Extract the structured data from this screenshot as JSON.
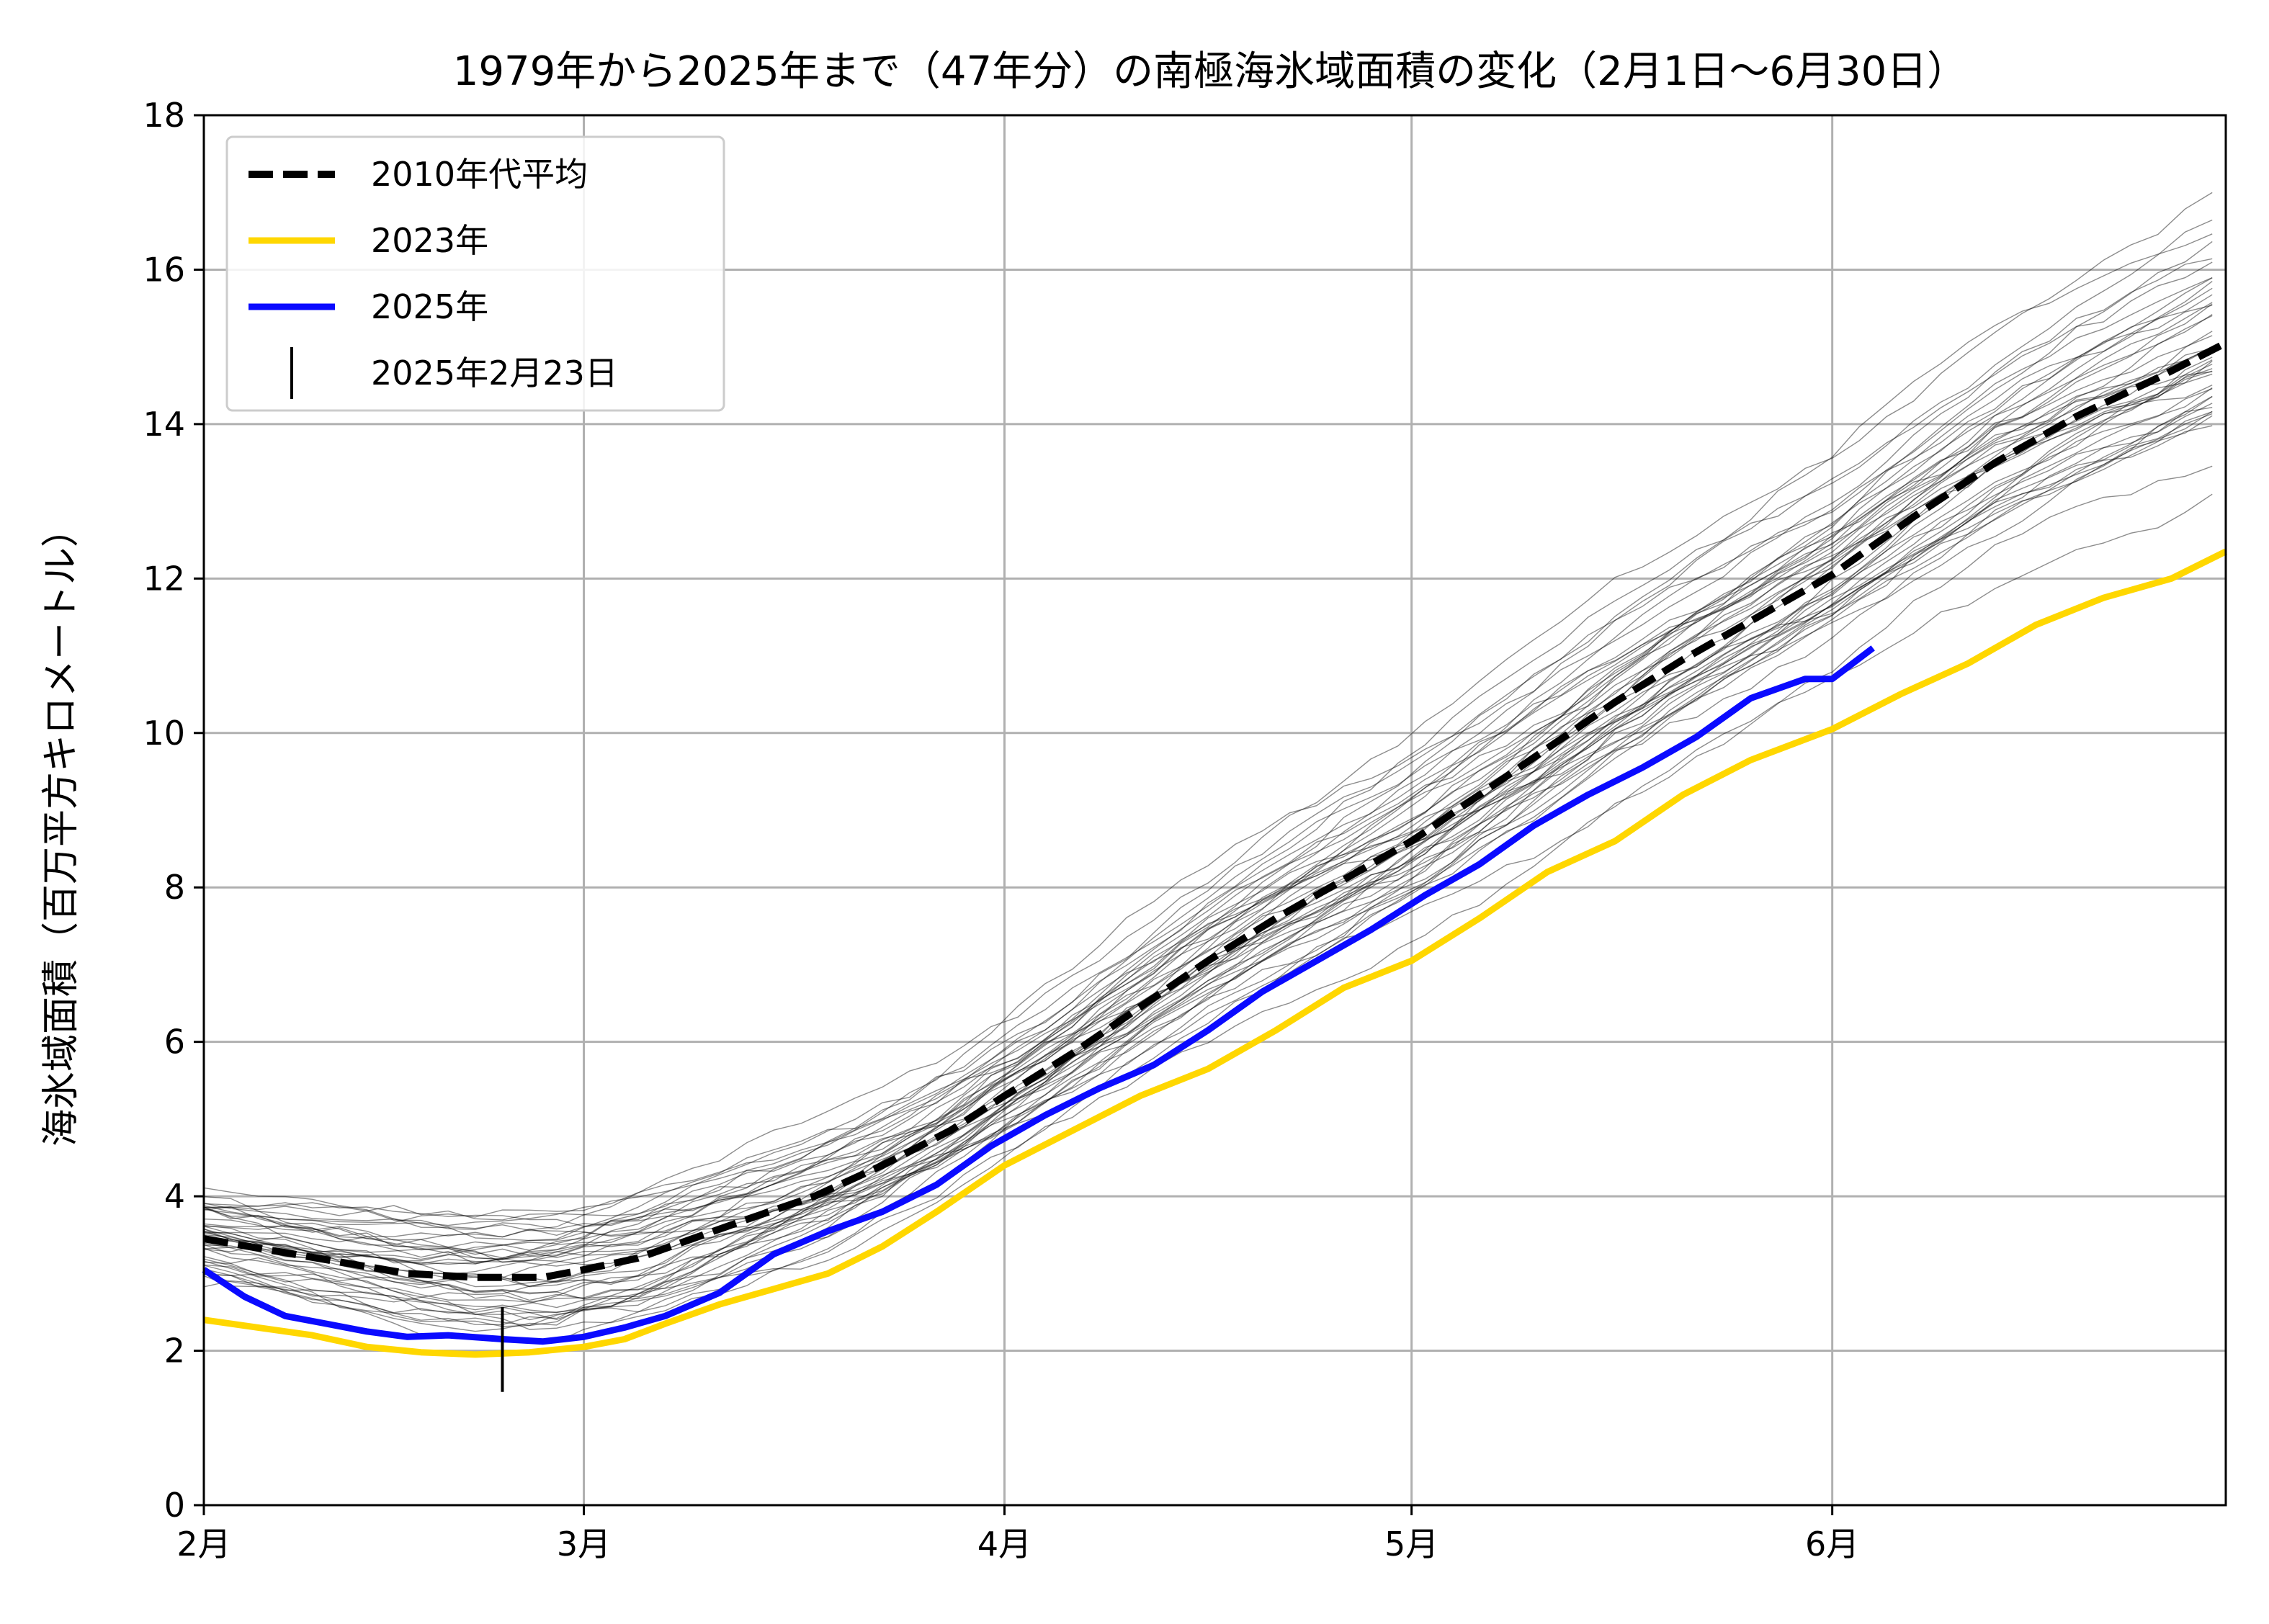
{
  "chart_data": {
    "type": "line",
    "title": "1979年から2025年まで（47年分）の南極海氷域面積の変化（2月1日〜6月30日）",
    "xlabel": "",
    "ylabel": "海氷域面積（百万平方キロメートル）",
    "x_unit": "day of year (Feb 1 = 0)",
    "xlim": [
      0,
      149
    ],
    "ylim": [
      0,
      18
    ],
    "x_ticks": [
      {
        "value": 0,
        "label": "2月"
      },
      {
        "value": 28,
        "label": "3月"
      },
      {
        "value": 59,
        "label": "4月"
      },
      {
        "value": 89,
        "label": "5月"
      },
      {
        "value": 120,
        "label": "6月"
      }
    ],
    "y_ticks": [
      0,
      2,
      4,
      6,
      8,
      10,
      12,
      14,
      16,
      18
    ],
    "grid": true,
    "legend_position": "top-left",
    "series": [
      {
        "name": "2010年代平均",
        "color": "#000000",
        "style": "dashed",
        "points": [
          [
            0,
            3.45
          ],
          [
            5,
            3.3
          ],
          [
            10,
            3.15
          ],
          [
            15,
            3.0
          ],
          [
            20,
            2.95
          ],
          [
            25,
            2.95
          ],
          [
            28,
            3.05
          ],
          [
            32,
            3.2
          ],
          [
            36,
            3.45
          ],
          [
            40,
            3.7
          ],
          [
            45,
            4.0
          ],
          [
            50,
            4.4
          ],
          [
            55,
            4.85
          ],
          [
            59,
            5.3
          ],
          [
            64,
            5.85
          ],
          [
            69,
            6.45
          ],
          [
            74,
            7.05
          ],
          [
            79,
            7.6
          ],
          [
            84,
            8.1
          ],
          [
            89,
            8.6
          ],
          [
            94,
            9.2
          ],
          [
            99,
            9.8
          ],
          [
            104,
            10.4
          ],
          [
            109,
            10.95
          ],
          [
            114,
            11.45
          ],
          [
            120,
            12.05
          ],
          [
            126,
            12.8
          ],
          [
            132,
            13.5
          ],
          [
            138,
            14.1
          ],
          [
            144,
            14.6
          ],
          [
            149,
            15.05
          ]
        ]
      },
      {
        "name": "2023年",
        "color": "#ffd700",
        "style": "solid",
        "points": [
          [
            0,
            2.4
          ],
          [
            4,
            2.3
          ],
          [
            8,
            2.2
          ],
          [
            12,
            2.05
          ],
          [
            16,
            1.98
          ],
          [
            20,
            1.95
          ],
          [
            24,
            1.98
          ],
          [
            28,
            2.05
          ],
          [
            31,
            2.15
          ],
          [
            34,
            2.35
          ],
          [
            38,
            2.6
          ],
          [
            42,
            2.8
          ],
          [
            46,
            3.0
          ],
          [
            50,
            3.35
          ],
          [
            54,
            3.8
          ],
          [
            59,
            4.4
          ],
          [
            64,
            4.85
          ],
          [
            69,
            5.3
          ],
          [
            74,
            5.65
          ],
          [
            79,
            6.15
          ],
          [
            84,
            6.7
          ],
          [
            89,
            7.05
          ],
          [
            94,
            7.6
          ],
          [
            99,
            8.2
          ],
          [
            104,
            8.6
          ],
          [
            109,
            9.2
          ],
          [
            114,
            9.65
          ],
          [
            120,
            10.05
          ],
          [
            125,
            10.5
          ],
          [
            130,
            10.9
          ],
          [
            135,
            11.4
          ],
          [
            140,
            11.75
          ],
          [
            145,
            12.0
          ],
          [
            149,
            12.35
          ]
        ]
      },
      {
        "name": "2025年",
        "color": "#0a0aff",
        "style": "solid",
        "points": [
          [
            0,
            3.05
          ],
          [
            3,
            2.7
          ],
          [
            6,
            2.45
          ],
          [
            9,
            2.35
          ],
          [
            12,
            2.25
          ],
          [
            15,
            2.18
          ],
          [
            18,
            2.2
          ],
          [
            22,
            2.15
          ],
          [
            25,
            2.12
          ],
          [
            28,
            2.18
          ],
          [
            31,
            2.3
          ],
          [
            34,
            2.45
          ],
          [
            38,
            2.75
          ],
          [
            42,
            3.25
          ],
          [
            46,
            3.55
          ],
          [
            50,
            3.8
          ],
          [
            54,
            4.15
          ],
          [
            58,
            4.65
          ],
          [
            62,
            5.05
          ],
          [
            66,
            5.4
          ],
          [
            70,
            5.7
          ],
          [
            74,
            6.15
          ],
          [
            78,
            6.65
          ],
          [
            82,
            7.05
          ],
          [
            86,
            7.45
          ],
          [
            90,
            7.9
          ],
          [
            94,
            8.3
          ],
          [
            98,
            8.8
          ],
          [
            102,
            9.2
          ],
          [
            106,
            9.55
          ],
          [
            110,
            9.95
          ],
          [
            114,
            10.45
          ],
          [
            118,
            10.7
          ],
          [
            120,
            10.7
          ],
          [
            123,
            11.1
          ]
        ]
      }
    ],
    "background_years": {
      "count": 44,
      "color": "#000000",
      "note_visible": false
    },
    "marker": {
      "label": "2025年2月23日",
      "x": 22,
      "y": 2.12,
      "color": "#000000"
    }
  }
}
